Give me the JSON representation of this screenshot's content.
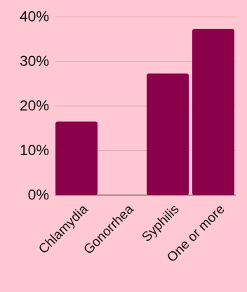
{
  "background_color": "#ffc8d2",
  "bar_color": "#8b004b",
  "chart_data": {
    "type": "bar",
    "title": "",
    "xlabel": "",
    "ylabel": "",
    "categories": [
      "Chlamydia",
      "Gonorrhea",
      "Syphilis",
      "One or more"
    ],
    "values": [
      16.5,
      0,
      27.3,
      37.3
    ],
    "ylim": [
      0,
      40
    ],
    "yticks": [
      0,
      10,
      20,
      30,
      40
    ],
    "ytick_labels": [
      "0%",
      "10%",
      "20%",
      "30%",
      "40%"
    ],
    "grid": true,
    "legend": "none"
  }
}
